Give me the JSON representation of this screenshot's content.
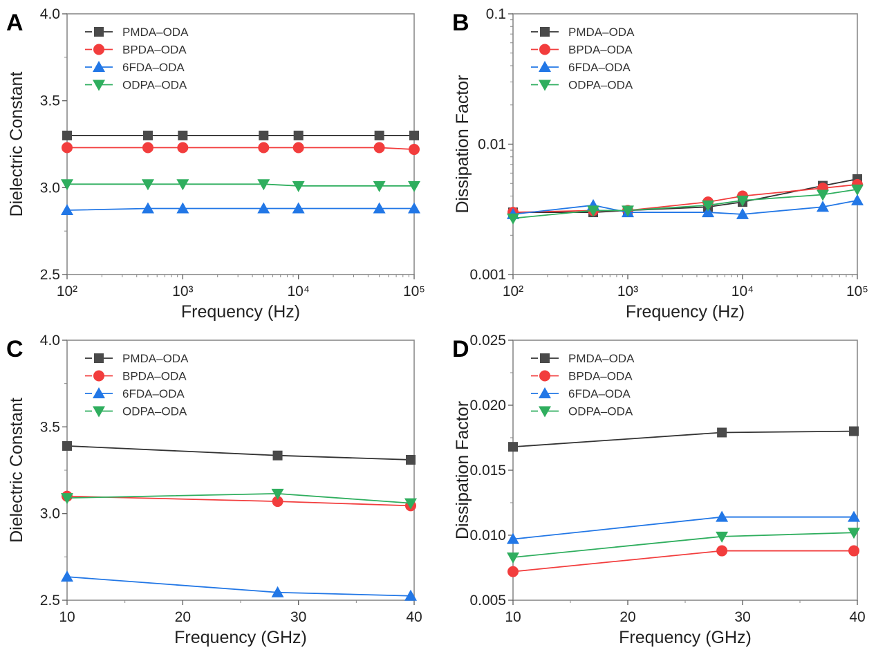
{
  "colors": {
    "PMDA–ODA": "#4a4a4a",
    "BPDA–ODA": "#f23d3d",
    "6FDA–ODA": "#2277e6",
    "ODPA–ODA": "#2fae5e"
  },
  "markers": {
    "PMDA–ODA": "square",
    "BPDA–ODA": "circle",
    "6FDA–ODA": "triangle-up",
    "ODPA–ODA": "triangle-down"
  },
  "chart_data": [
    {
      "panel": "A",
      "type": "line",
      "xscale": "log",
      "yscale": "linear",
      "xlabel": "Frequency (Hz)",
      "ylabel": "Dielectric  Constant",
      "xlim": [
        100,
        100000
      ],
      "ylim": [
        2.5,
        4.0
      ],
      "xticks": [
        100,
        1000,
        10000,
        100000
      ],
      "xtick_labels": [
        "10²",
        "10³",
        "10⁴",
        "10⁵"
      ],
      "yticks": [
        2.5,
        3.0,
        3.5,
        4.0
      ],
      "ytick_labels": [
        "2.5",
        "3.0",
        "3.5",
        "4.0"
      ],
      "legend": "top-left",
      "x": [
        100,
        500,
        1000,
        5000,
        10000,
        50000,
        100000
      ],
      "series": [
        {
          "name": "PMDA–ODA",
          "values": [
            3.3,
            3.3,
            3.3,
            3.3,
            3.3,
            3.3,
            3.3
          ]
        },
        {
          "name": "BPDA–ODA",
          "values": [
            3.23,
            3.23,
            3.23,
            3.23,
            3.23,
            3.23,
            3.22
          ]
        },
        {
          "name": "6FDA–ODA",
          "values": [
            2.87,
            2.88,
            2.88,
            2.88,
            2.88,
            2.88,
            2.88
          ]
        },
        {
          "name": "ODPA–ODA",
          "values": [
            3.02,
            3.02,
            3.02,
            3.02,
            3.01,
            3.01,
            3.01
          ]
        }
      ]
    },
    {
      "panel": "B",
      "type": "line",
      "xscale": "log",
      "yscale": "log",
      "xlabel": "Frequency (Hz)",
      "ylabel": "Dissipation  Factor",
      "xlim": [
        100,
        100000
      ],
      "ylim": [
        0.001,
        0.1
      ],
      "xticks": [
        100,
        1000,
        10000,
        100000
      ],
      "xtick_labels": [
        "10²",
        "10³",
        "10⁴",
        "10⁵"
      ],
      "yticks": [
        0.001,
        0.01,
        0.1
      ],
      "ytick_labels": [
        "0.001",
        "0.01",
        "0.1"
      ],
      "legend": "top-left",
      "x": [
        100,
        500,
        1000,
        5000,
        10000,
        50000,
        100000
      ],
      "series": [
        {
          "name": "PMDA–ODA",
          "values": [
            0.003,
            0.003,
            0.0031,
            0.0033,
            0.0036,
            0.0048,
            0.0054
          ]
        },
        {
          "name": "BPDA–ODA",
          "values": [
            0.003,
            0.0031,
            0.0031,
            0.0036,
            0.004,
            0.0046,
            0.0049
          ]
        },
        {
          "name": "6FDA–ODA",
          "values": [
            0.0029,
            0.0034,
            0.003,
            0.003,
            0.0029,
            0.0033,
            0.0037
          ]
        },
        {
          "name": "ODPA–ODA",
          "values": [
            0.0027,
            0.0031,
            0.0031,
            0.0034,
            0.0037,
            0.0041,
            0.0045
          ]
        }
      ]
    },
    {
      "panel": "C",
      "type": "line",
      "xscale": "linear",
      "yscale": "linear",
      "xlabel": "Frequency (GHz)",
      "ylabel": "Dielectric  Constant",
      "xlim": [
        10,
        40
      ],
      "ylim": [
        2.5,
        4.0
      ],
      "xticks": [
        10,
        20,
        30,
        40
      ],
      "xtick_labels": [
        "10",
        "20",
        "30",
        "40"
      ],
      "yticks": [
        2.5,
        3.0,
        3.5,
        4.0
      ],
      "ytick_labels": [
        "2.5",
        "3.0",
        "3.5",
        "4.0"
      ],
      "legend": "top-left",
      "x": [
        10,
        28.2,
        39.7
      ],
      "series": [
        {
          "name": "PMDA–ODA",
          "values": [
            3.39,
            3.335,
            3.31
          ]
        },
        {
          "name": "BPDA–ODA",
          "values": [
            3.1,
            3.07,
            3.045
          ]
        },
        {
          "name": "6FDA–ODA",
          "values": [
            2.635,
            2.545,
            2.525
          ]
        },
        {
          "name": "ODPA–ODA",
          "values": [
            3.09,
            3.115,
            3.06
          ]
        }
      ]
    },
    {
      "panel": "D",
      "type": "line",
      "xscale": "linear",
      "yscale": "linear",
      "xlabel": "Frequency (GHz)",
      "ylabel": "Dissipation  Factor",
      "xlim": [
        10,
        40
      ],
      "ylim": [
        0.005,
        0.025
      ],
      "xticks": [
        10,
        20,
        30,
        40
      ],
      "xtick_labels": [
        "10",
        "20",
        "30",
        "40"
      ],
      "yticks": [
        0.005,
        0.01,
        0.015,
        0.02,
        0.025
      ],
      "ytick_labels": [
        "0.005",
        "0.010",
        "0.015",
        "0.020",
        "0.025"
      ],
      "legend": "top-left",
      "x": [
        10,
        28.2,
        39.7
      ],
      "series": [
        {
          "name": "PMDA–ODA",
          "values": [
            0.0168,
            0.0179,
            0.018
          ]
        },
        {
          "name": "BPDA–ODA",
          "values": [
            0.0072,
            0.0088,
            0.0088
          ]
        },
        {
          "name": "6FDA–ODA",
          "values": [
            0.0097,
            0.0114,
            0.0114
          ]
        },
        {
          "name": "ODPA–ODA",
          "values": [
            0.0083,
            0.0099,
            0.0102
          ]
        }
      ]
    }
  ]
}
